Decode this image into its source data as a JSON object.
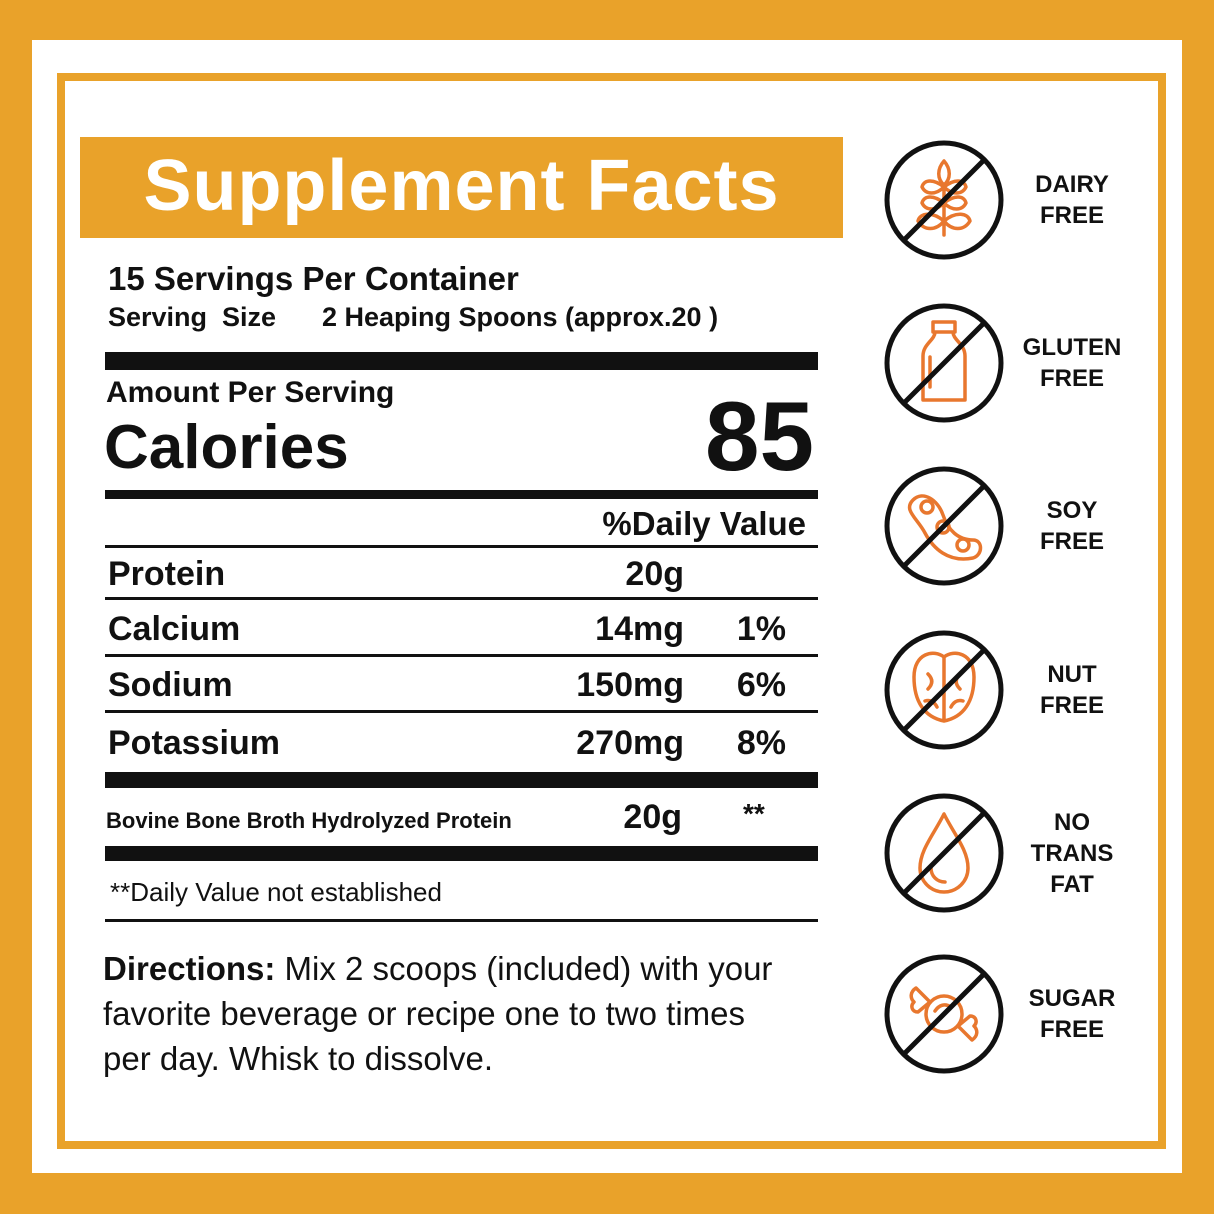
{
  "title": "Supplement Facts",
  "servings_per_container": "15 Servings Per Container",
  "serving_size_label": "Serving  Size",
  "serving_size_value": "2 Heaping Spoons (approx.20 )",
  "amount_per_serving": "Amount Per Serving",
  "calories_label": "Calories",
  "calories_value": "85",
  "daily_value_header": "%Daily Value",
  "nutrients": [
    {
      "name": "Protein",
      "amount": "20g",
      "dv": ""
    },
    {
      "name": "Calcium",
      "amount": "14mg",
      "dv": "1%"
    },
    {
      "name": "Sodium",
      "amount": "150mg",
      "dv": "6%"
    },
    {
      "name": "Potassium",
      "amount": "270mg",
      "dv": "8%"
    }
  ],
  "ingredient": {
    "name": "Bovine Bone Broth Hydrolyzed Protein",
    "amount": "20g",
    "dv": "**"
  },
  "footnote": "**Daily Value not established",
  "directions": {
    "label": "Directions:",
    "line1": " Mix 2 scoops (included) with your",
    "line2": "favorite beverage or recipe one to two times",
    "line3": "per day. Whisk to dissolve."
  },
  "badges": [
    {
      "icon": "wheat-icon",
      "label1": "DAIRY",
      "label2": "FREE",
      "label3": ""
    },
    {
      "icon": "milk-bottle-icon",
      "label1": "GLUTEN",
      "label2": "FREE",
      "label3": ""
    },
    {
      "icon": "soybean-icon",
      "label1": "SOY",
      "label2": "FREE",
      "label3": ""
    },
    {
      "icon": "walnut-icon",
      "label1": "NUT",
      "label2": "FREE",
      "label3": ""
    },
    {
      "icon": "oil-drop-icon",
      "label1": "NO",
      "label2": "TRANS",
      "label3": "FAT"
    },
    {
      "icon": "candy-icon",
      "label1": "SUGAR",
      "label2": "FREE",
      "label3": ""
    }
  ],
  "colors": {
    "brand": "#E9A22A",
    "icon": "#E8772E",
    "text": "#111111"
  }
}
